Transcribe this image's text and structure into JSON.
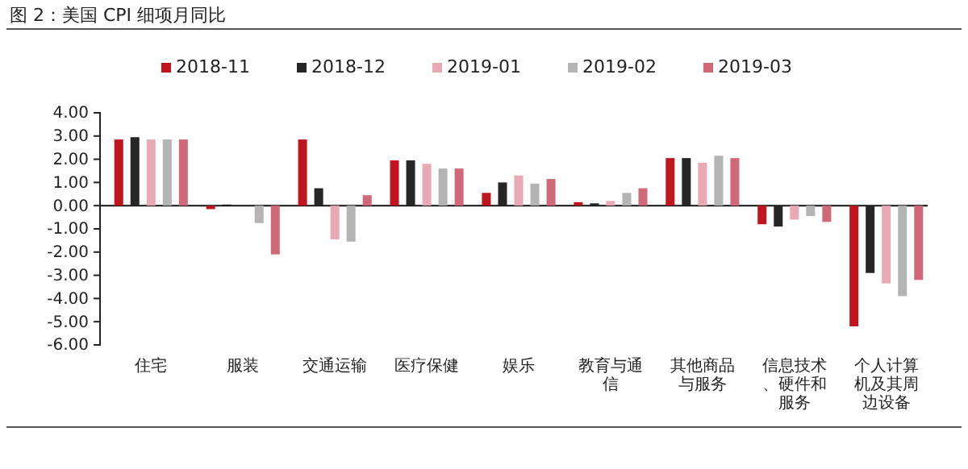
{
  "chart_data": {
    "type": "bar",
    "title": "图 2：美国 CPI 细项月同比",
    "categories": [
      "住宅",
      "服装",
      "交通运输",
      "医疗保健",
      "娱乐",
      "教育与通信",
      "其他商品与服务",
      "信息技术、硬件和服务",
      "个人计算机及其周边设备"
    ],
    "series": [
      {
        "name": "2018-11",
        "color": "#c0141e",
        "values": [
          2.85,
          -0.15,
          2.85,
          1.95,
          0.55,
          0.15,
          2.05,
          -0.8,
          -5.2
        ]
      },
      {
        "name": "2018-12",
        "color": "#262626",
        "values": [
          2.95,
          0.05,
          0.75,
          1.95,
          1.0,
          0.1,
          2.05,
          -0.9,
          -2.9
        ]
      },
      {
        "name": "2019-01",
        "color": "#e8a8b4",
        "values": [
          2.85,
          0.0,
          -1.45,
          1.8,
          1.3,
          0.2,
          1.85,
          -0.6,
          -3.35
        ]
      },
      {
        "name": "2019-02",
        "color": "#b4b4b4",
        "values": [
          2.85,
          -0.75,
          -1.55,
          1.6,
          0.95,
          0.55,
          2.15,
          -0.45,
          -3.9
        ]
      },
      {
        "name": "2019-03",
        "color": "#d06878",
        "values": [
          2.85,
          -2.1,
          0.45,
          1.6,
          1.15,
          0.75,
          2.05,
          -0.7,
          -3.2
        ]
      }
    ],
    "ylim": [
      -6,
      4
    ],
    "yticks": [
      {
        "value": 4,
        "label": "4.00"
      },
      {
        "value": 3,
        "label": "3.00"
      },
      {
        "value": 2,
        "label": "2.00"
      },
      {
        "value": 1,
        "label": "1.00"
      },
      {
        "value": 0,
        "label": "0.00"
      },
      {
        "value": -1,
        "label": "-1.00"
      },
      {
        "value": -2,
        "label": "-2.00"
      },
      {
        "value": -3,
        "label": "-3.00"
      },
      {
        "value": -4,
        "label": "-4.00"
      },
      {
        "value": -5,
        "label": "-5.00"
      },
      {
        "value": -6,
        "label": "-6.00"
      }
    ],
    "legend": "top"
  }
}
